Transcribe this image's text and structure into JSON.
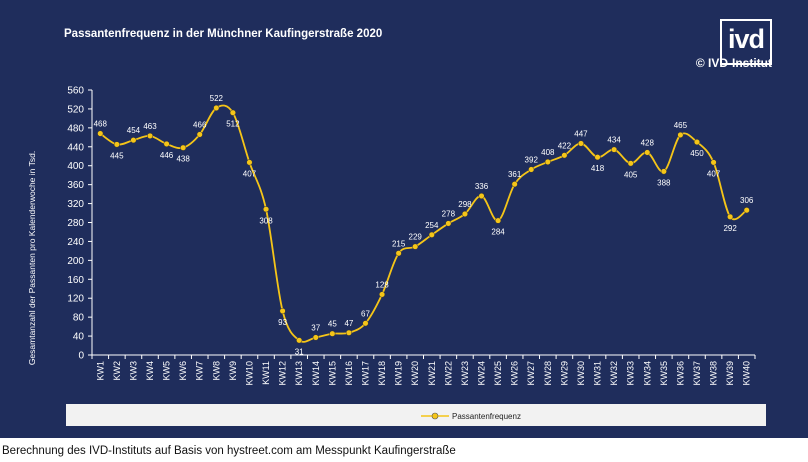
{
  "chart_data": {
    "type": "line",
    "title": "Passantenfrequenz in der Münchner Kaufingerstraße 2020",
    "ylabel": "Gesamtanzahl der Passanten pro  Kalenderwoche in Tsd.",
    "xlabel": "",
    "ylim": [
      0,
      560
    ],
    "yticks": [
      0,
      40,
      80,
      120,
      160,
      200,
      240,
      280,
      320,
      360,
      400,
      440,
      480,
      520,
      560
    ],
    "grid": false,
    "legend_position": "bottom",
    "categories": [
      "KW1",
      "KW2",
      "KW3",
      "KW4",
      "KW5",
      "KW6",
      "KW7",
      "KW8",
      "KW9",
      "KW10",
      "KW11",
      "KW12",
      "KW13",
      "KW14",
      "KW15",
      "KW16",
      "KW17",
      "KW18",
      "KW19",
      "KW20",
      "KW21",
      "KW22",
      "KW23",
      "KW24",
      "KW25",
      "KW26",
      "KW27",
      "KW28",
      "KW29",
      "KW30",
      "KW31",
      "KW32",
      "KW33",
      "KW34",
      "KW35",
      "KW36",
      "KW37",
      "KW38",
      "KW39",
      "KW40"
    ],
    "series": [
      {
        "name": "Passantenfrequenz",
        "color": "#f5c518",
        "values": [
          468,
          445,
          454,
          463,
          446,
          438,
          466,
          522,
          512,
          407,
          308,
          93,
          31,
          37,
          45,
          47,
          67,
          128,
          215,
          229,
          254,
          278,
          298,
          336,
          284,
          361,
          392,
          408,
          422,
          447,
          418,
          434,
          405,
          428,
          388,
          465,
          450,
          407,
          292,
          306
        ]
      }
    ]
  },
  "branding": {
    "logo_text": "ivd",
    "copyright": "© IVD-Institut"
  },
  "footer": {
    "source": "Berechnung des IVD-Instituts auf Basis von hystreet.com am Messpunkt Kaufingerstraße"
  },
  "colors": {
    "background": "#1f2d5c",
    "axis": "#ffffff",
    "line": "#f5c518",
    "legend_bg": "#f2f2f2"
  }
}
